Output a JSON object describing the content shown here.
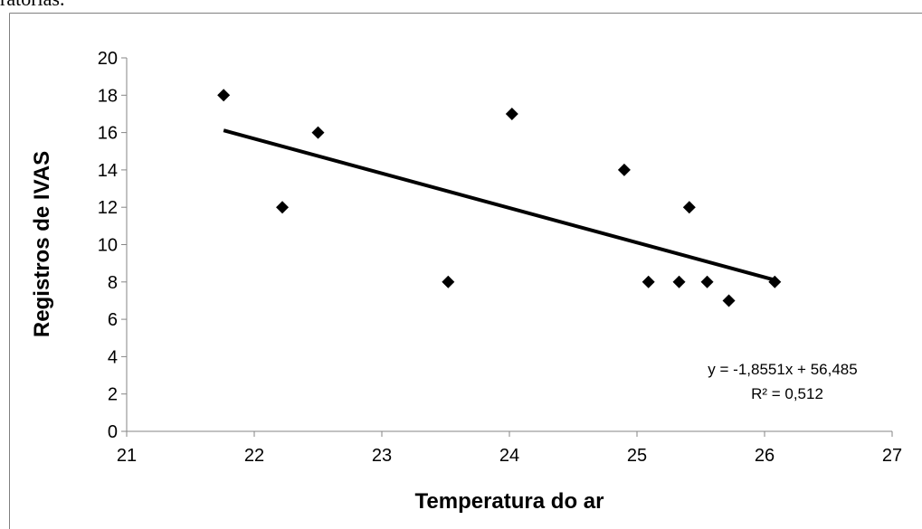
{
  "caption_fragment": "ratórias.",
  "chart_data": {
    "type": "scatter",
    "x_label": "Temperatura do ar",
    "y_label": "Registros de IVAS",
    "x": [
      21.76,
      22.22,
      22.5,
      23.52,
      24.02,
      24.9,
      25.09,
      25.33,
      25.41,
      25.55,
      25.72,
      26.08
    ],
    "values": [
      18,
      12,
      16,
      8,
      17,
      14,
      8,
      8,
      12,
      8,
      7,
      8
    ],
    "color": "#000000",
    "xlim": [
      21,
      27
    ],
    "xticks": [
      21,
      22,
      23,
      24,
      25,
      26,
      27
    ],
    "ylim": [
      0,
      20
    ],
    "yticks": [
      0,
      2,
      4,
      6,
      8,
      10,
      12,
      14,
      16,
      18,
      20
    ],
    "grid": false,
    "trendline": {
      "slope": -1.8551,
      "intercept": 56.485,
      "label": "y = -1,8551x  + 56,485",
      "r2_label": "R² = 0,512"
    }
  }
}
